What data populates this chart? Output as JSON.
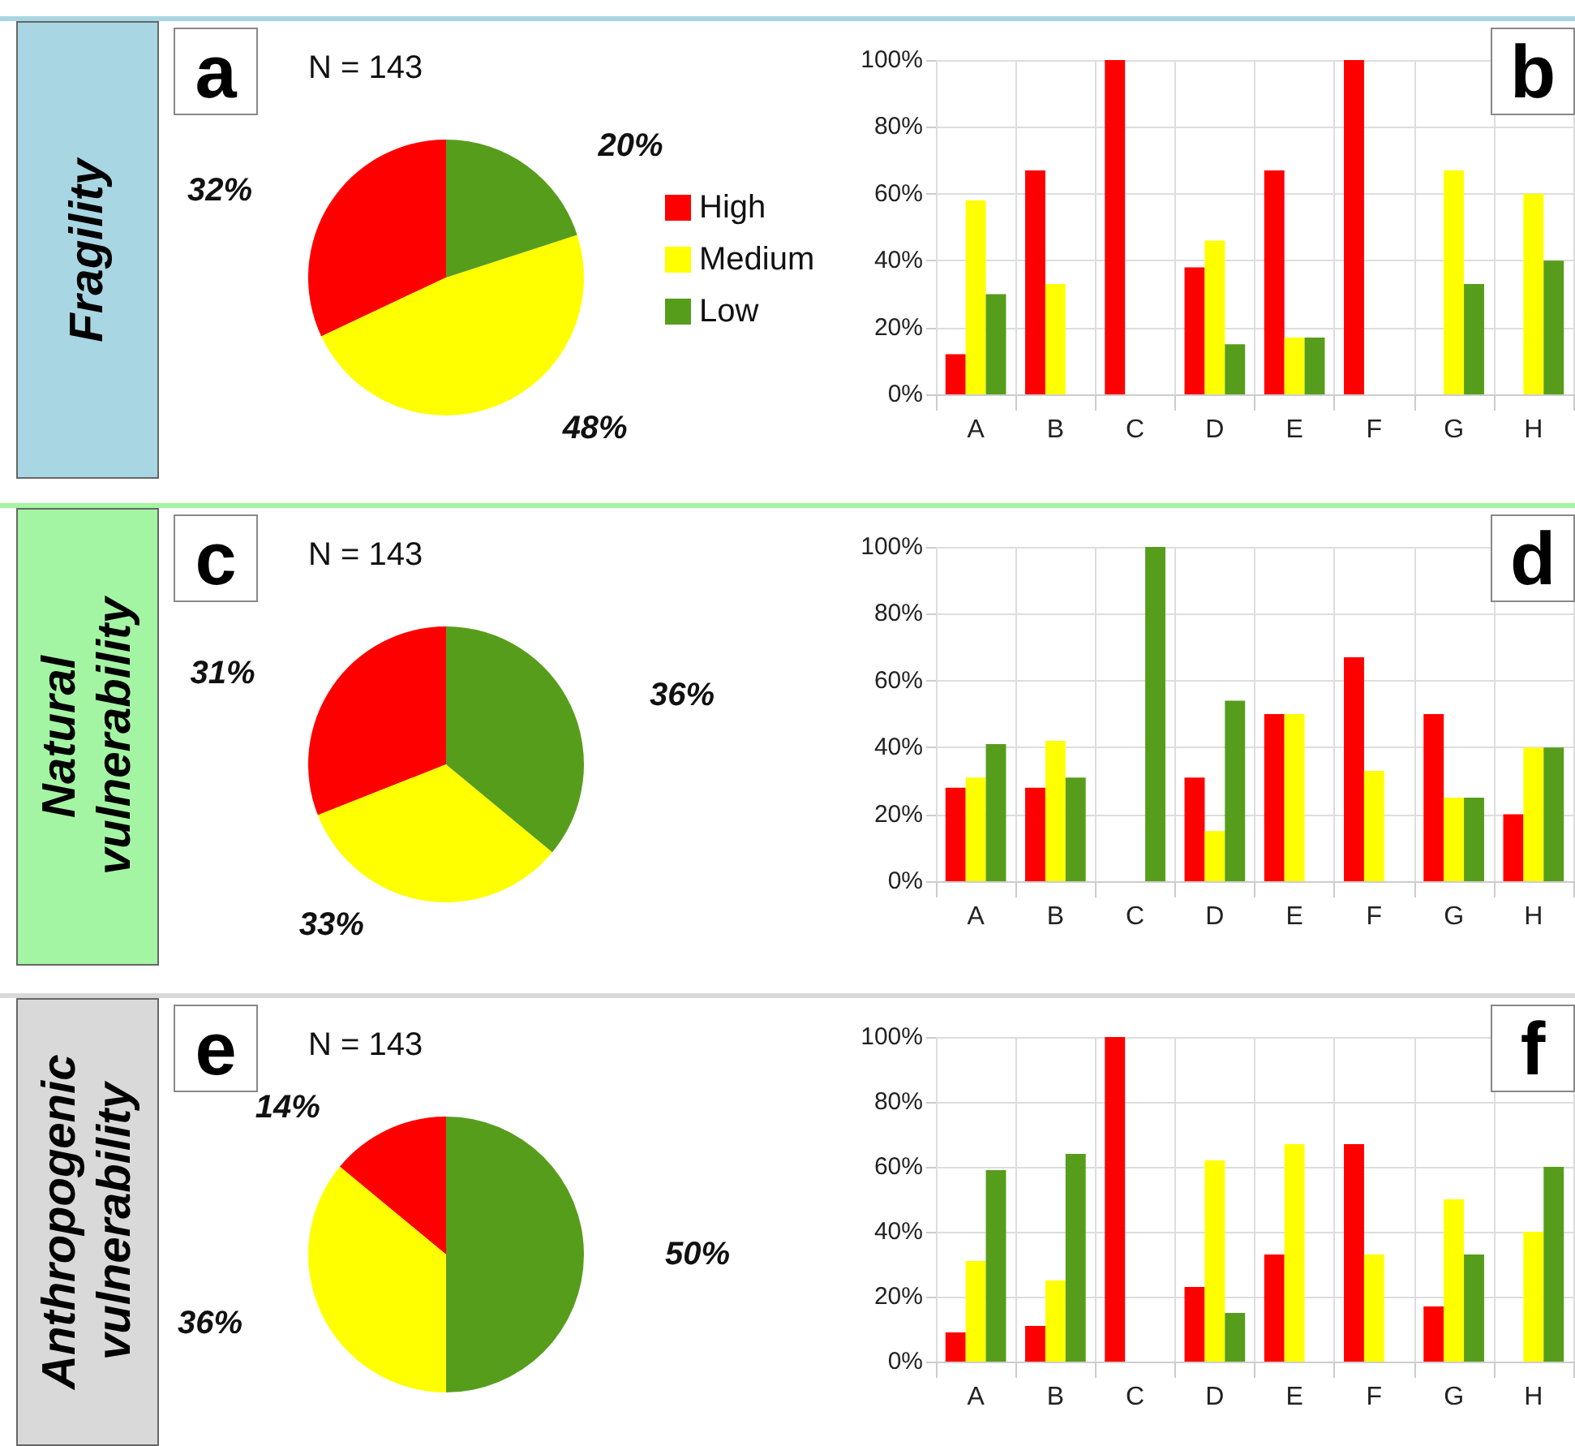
{
  "chart_data": [
    {
      "type": "pie",
      "title": "Fragility",
      "annotations": [
        "a",
        "N = 143"
      ],
      "categories": [
        "High",
        "Medium",
        "Low"
      ],
      "values": [
        32,
        48,
        20
      ],
      "colors": [
        "#ff0000",
        "#ffff00",
        "#579d1c"
      ],
      "value_labels": [
        "32%",
        "48%",
        "20%"
      ],
      "legend": "right"
    },
    {
      "type": "bar",
      "annotations": [
        "b"
      ],
      "categories": [
        "A",
        "B",
        "C",
        "D",
        "E",
        "F",
        "G",
        "H"
      ],
      "series": [
        {
          "color": "#ff0000",
          "values": [
            12,
            67,
            100,
            38,
            67,
            100,
            0,
            0
          ]
        },
        {
          "color": "#ffff00",
          "values": [
            58,
            33,
            0,
            46,
            17,
            0,
            67,
            60
          ]
        },
        {
          "color": "#579d1c",
          "values": [
            30,
            0,
            0,
            15,
            17,
            0,
            33,
            40
          ]
        }
      ],
      "ylim": [
        0,
        100
      ],
      "yticks": [
        {
          "value": 0,
          "label": "0%"
        },
        {
          "value": 20,
          "label": "20%"
        },
        {
          "value": 40,
          "label": "40%"
        },
        {
          "value": 60,
          "label": "60%"
        },
        {
          "value": 80,
          "label": "80%"
        },
        {
          "value": 100,
          "label": "100%"
        }
      ],
      "grid": true
    },
    {
      "type": "pie",
      "title": "Natural vulnerability",
      "annotations": [
        "c",
        "N = 143"
      ],
      "categories": [
        null,
        null,
        null
      ],
      "values": [
        31,
        33,
        36
      ],
      "colors": [
        "#ff0000",
        "#ffff00",
        "#579d1c"
      ],
      "value_labels": [
        "31%",
        "33%",
        "36%"
      ]
    },
    {
      "type": "bar",
      "annotations": [
        "d"
      ],
      "categories": [
        "A",
        "B",
        "C",
        "D",
        "E",
        "F",
        "G",
        "H"
      ],
      "series": [
        {
          "color": "#ff0000",
          "values": [
            28,
            28,
            0,
            31,
            50,
            67,
            50,
            20
          ]
        },
        {
          "color": "#ffff00",
          "values": [
            31,
            42,
            0,
            15,
            50,
            33,
            25,
            40
          ]
        },
        {
          "color": "#579d1c",
          "values": [
            41,
            31,
            100,
            54,
            0,
            0,
            25,
            40
          ]
        }
      ],
      "ylim": [
        0,
        100
      ],
      "yticks": [
        {
          "value": 0,
          "label": "0%"
        },
        {
          "value": 20,
          "label": "20%"
        },
        {
          "value": 40,
          "label": "40%"
        },
        {
          "value": 60,
          "label": "60%"
        },
        {
          "value": 80,
          "label": "80%"
        },
        {
          "value": 100,
          "label": "100%"
        }
      ],
      "grid": true
    },
    {
      "type": "pie",
      "title": "Anthropogenic vulnerability",
      "annotations": [
        "e",
        "N = 143"
      ],
      "categories": [
        null,
        null,
        null
      ],
      "values": [
        14,
        36,
        50
      ],
      "colors": [
        "#ff0000",
        "#ffff00",
        "#579d1c"
      ],
      "value_labels": [
        "14%",
        "36%",
        "50%"
      ]
    },
    {
      "type": "bar",
      "annotations": [
        "f"
      ],
      "categories": [
        "A",
        "B",
        "C",
        "D",
        "E",
        "F",
        "G",
        "H"
      ],
      "series": [
        {
          "color": "#ff0000",
          "values": [
            9,
            11,
            100,
            23,
            33,
            67,
            17,
            0
          ]
        },
        {
          "color": "#ffff00",
          "values": [
            31,
            25,
            0,
            62,
            67,
            33,
            50,
            40
          ]
        },
        {
          "color": "#579d1c",
          "values": [
            59,
            64,
            0,
            15,
            0,
            0,
            33,
            60
          ]
        }
      ],
      "ylim": [
        0,
        100
      ],
      "yticks": [
        {
          "value": 0,
          "label": "0%"
        },
        {
          "value": 20,
          "label": "20%"
        },
        {
          "value": 40,
          "label": "40%"
        },
        {
          "value": 60,
          "label": "60%"
        },
        {
          "value": 80,
          "label": "80%"
        },
        {
          "value": 100,
          "label": "100%"
        }
      ],
      "grid": true
    }
  ]
}
